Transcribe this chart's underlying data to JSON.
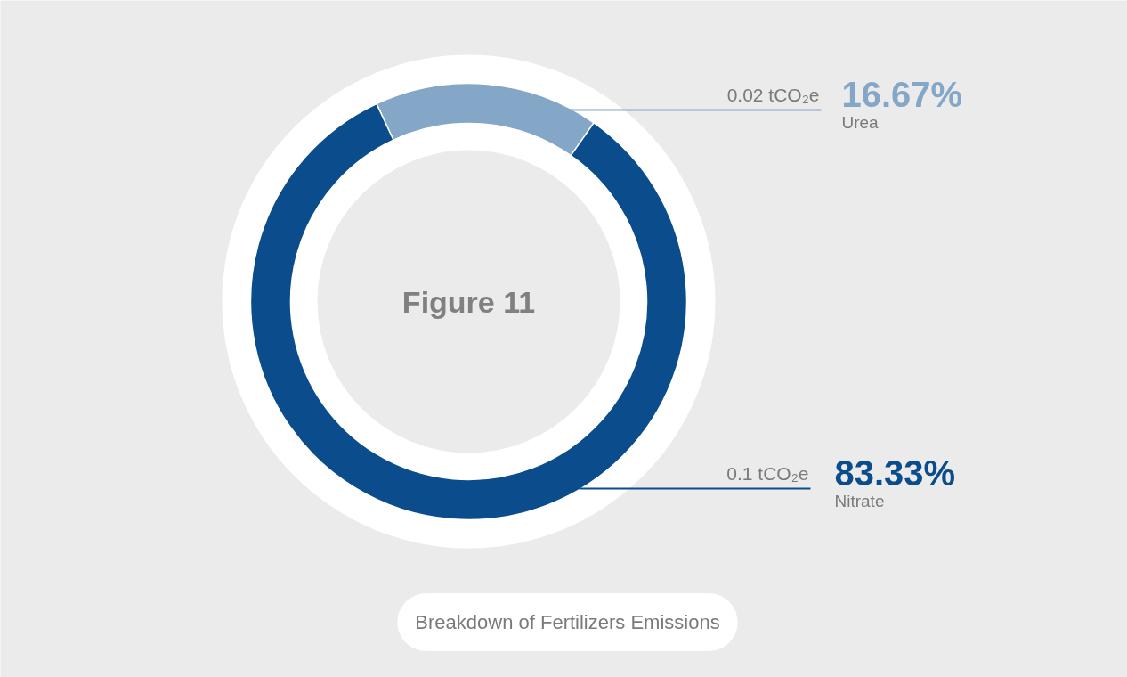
{
  "chart_data": {
    "type": "donut",
    "title": "Figure 11",
    "categories": [
      "Urea",
      "Nitrate"
    ],
    "values": [
      16.67,
      83.33
    ],
    "colors": [
      "#84a7c7",
      "#0b4c8c"
    ],
    "value_labels": [
      "16.67%",
      "83.33%"
    ],
    "annotations": [
      {
        "text": "0.02 tCO₂e",
        "x": "Urea"
      },
      {
        "text": "0.1 tCO₂e",
        "x": "Nitrate"
      },
      "Breakdown of Fertilizers Emissions"
    ],
    "legend": false
  }
}
